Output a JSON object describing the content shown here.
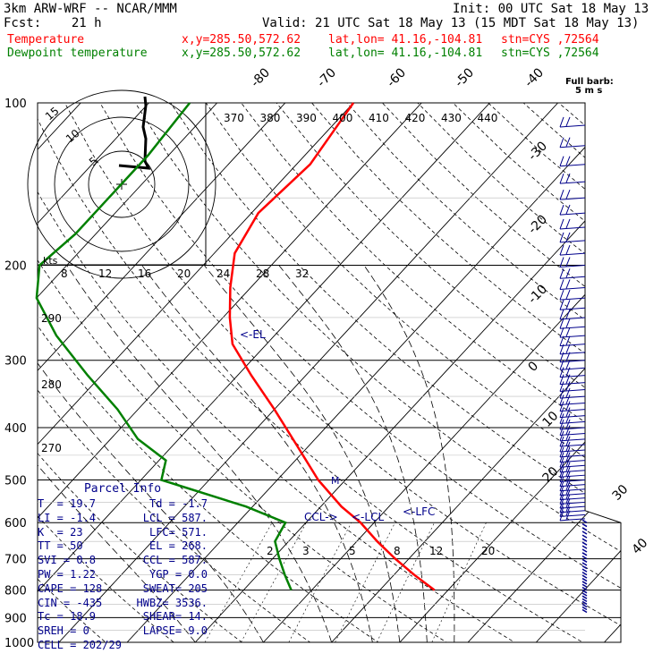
{
  "header": {
    "model": "3km ARW-WRF -- NCAR/MMM",
    "init": "Init: 00 UTC Sat 18 May 13",
    "fcst": "Fcst:    21 h",
    "valid": "Valid: 21 UTC Sat 18 May 13 (15 MDT Sat 18 May 13)",
    "line1_name": "Temperature",
    "line1_xy": "x,y=285.50,572.62",
    "line1_latlon": "lat,lon= 41.16,-104.81",
    "line1_stn": "stn=CYS ,72564",
    "line2_name": "Dewpoint temperature",
    "line2_xy": "x,y=285.50,572.62",
    "line2_latlon": "lat,lon= 41.16,-104.81",
    "line2_stn": "stn=CYS ,72564"
  },
  "colors": {
    "temperature": "#ff0000",
    "dewpoint": "#008000",
    "axes": "#000000",
    "annot": "#00008b"
  },
  "labels": {
    "barb_key": "Full barb:",
    "barb_units": "5 m s",
    "kts": "kts",
    "el": "<-EL",
    "lfc": "<-LFC",
    "lcl": "<-LCL",
    "ccl": "CCL->",
    "m": "M"
  },
  "parcel_info": {
    "title": "Parcel Info",
    "rows": [
      [
        "T  =",
        "19.7",
        "Td =",
        "-1.7"
      ],
      [
        "LI =",
        "-1.4",
        "LCL =",
        "587."
      ],
      [
        "K  =",
        "23",
        "LFC=",
        "571."
      ],
      [
        "TT =",
        "50",
        "EL =",
        "268."
      ],
      [
        "SVI =",
        "0.8",
        "CCL =",
        "587."
      ],
      [
        "PW =",
        "1.22",
        "YGP =",
        "0.0"
      ],
      [
        "CAPE =",
        "128",
        "SWEAT=",
        "205"
      ],
      [
        "CIN =",
        "-435",
        "HWBZ=",
        "3536."
      ],
      [
        "Tc =",
        "18.9",
        "SHEAR=",
        "14."
      ],
      [
        "SREH =",
        "0",
        "LAPSE=",
        "9.0"
      ],
      [
        "CELL =",
        "202/29",
        "",
        ""
      ]
    ]
  },
  "chart_data": {
    "type": "skew-t log-p",
    "y_axis": "pressure (hPa), log scale",
    "pressure_ticks": [
      100,
      200,
      300,
      400,
      500,
      600,
      700,
      800,
      900,
      1000
    ],
    "isotherm_labels": [
      -80,
      -70,
      -60,
      -50,
      -40,
      -30,
      -20,
      -10,
      0,
      10,
      20,
      30,
      40
    ],
    "theta_labels": [
      370,
      380,
      390,
      400,
      410,
      420,
      430,
      440
    ],
    "hodograph_speed_labels": [
      8,
      12,
      16,
      20,
      24,
      28,
      32
    ],
    "hodograph_rings": [
      5,
      10,
      15
    ],
    "mixing_ratio_labels": [
      2,
      3,
      5,
      8,
      12,
      20
    ],
    "left_theta_labels": [
      290,
      280,
      270
    ],
    "right_rotated_labels": [
      30,
      40
    ],
    "series": [
      {
        "name": "Temperature",
        "points": [
          [
            100,
            -60
          ],
          [
            130,
            -58
          ],
          [
            160,
            -59
          ],
          [
            190,
            -57
          ],
          [
            220,
            -53
          ],
          [
            250,
            -49
          ],
          [
            280,
            -45
          ],
          [
            320,
            -38
          ],
          [
            370,
            -30
          ],
          [
            430,
            -22
          ],
          [
            500,
            -14
          ],
          [
            560,
            -7
          ],
          [
            600,
            -2
          ],
          [
            650,
            3
          ],
          [
            700,
            8
          ],
          [
            750,
            13
          ],
          [
            800,
            18
          ]
        ]
      },
      {
        "name": "Dewpoint temperature",
        "points": [
          [
            100,
            -84
          ],
          [
            125,
            -83
          ],
          [
            150,
            -83
          ],
          [
            175,
            -83
          ],
          [
            200,
            -84
          ],
          [
            230,
            -80
          ],
          [
            270,
            -72
          ],
          [
            320,
            -62
          ],
          [
            370,
            -53
          ],
          [
            420,
            -46
          ],
          [
            460,
            -39
          ],
          [
            500,
            -37
          ],
          [
            560,
            -21
          ],
          [
            600,
            -13
          ],
          [
            650,
            -12
          ],
          [
            700,
            -9
          ],
          [
            750,
            -6
          ],
          [
            800,
            -3
          ]
        ]
      }
    ]
  }
}
